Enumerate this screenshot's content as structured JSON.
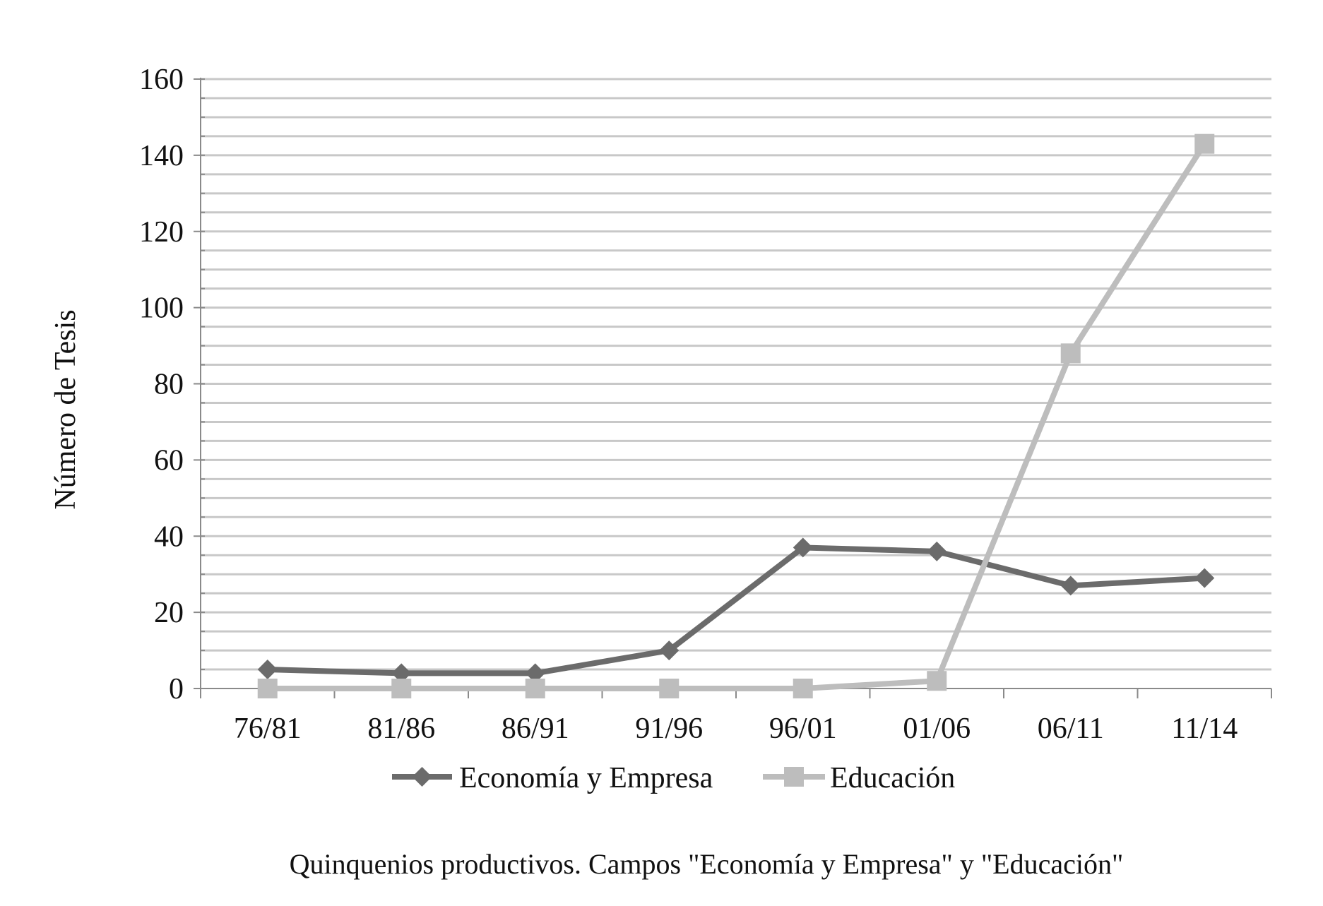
{
  "chart_data": {
    "type": "line",
    "title": "",
    "caption": "Quinquenios productivos. Campos \"Economía y Empresa\" y \"Educación\"",
    "xlabel": "",
    "ylabel": "Número de Tesis",
    "categories": [
      "76/81",
      "81/86",
      "86/91",
      "91/96",
      "96/01",
      "01/06",
      "06/11",
      "11/14"
    ],
    "ylim": [
      0,
      160
    ],
    "yticks": [
      0,
      20,
      40,
      60,
      80,
      100,
      120,
      140,
      160
    ],
    "minor_gridlines_every": 4,
    "grid": true,
    "legend_position": "bottom",
    "series": [
      {
        "name": "Economía y Empresa",
        "values": [
          5,
          4,
          4,
          10,
          37,
          36,
          27,
          29
        ],
        "color": "#6b6b6b",
        "marker": "diamond"
      },
      {
        "name": "Educación",
        "values": [
          0,
          0,
          0,
          0,
          0,
          2,
          88,
          143
        ],
        "color": "#bdbdbd",
        "marker": "square"
      }
    ]
  }
}
